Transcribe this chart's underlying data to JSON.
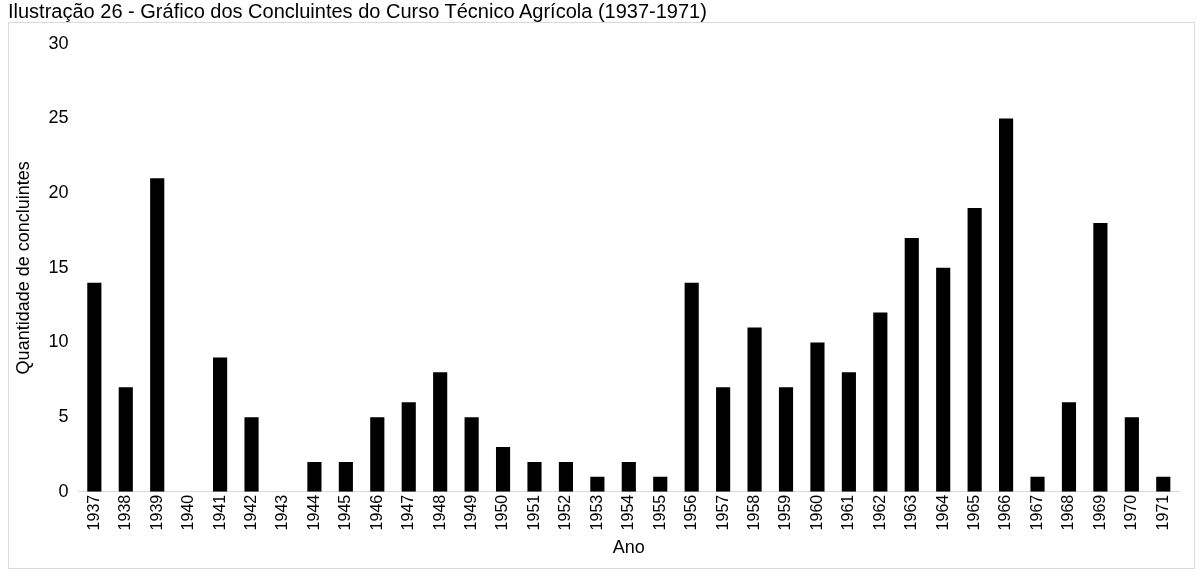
{
  "chart_data": {
    "type": "bar",
    "title": "Ilustração 26 - Gráfico dos Concluintes do Curso Técnico Agrícola (1937-1971)",
    "xlabel": "Ano",
    "ylabel": "Quantidade de concluintes",
    "categories": [
      "1937",
      "1938",
      "1939",
      "1940",
      "1941",
      "1942",
      "1943",
      "1944",
      "1945",
      "1946",
      "1947",
      "1948",
      "1949",
      "1950",
      "1951",
      "1952",
      "1953",
      "1954",
      "1955",
      "1956",
      "1957",
      "1958",
      "1959",
      "1960",
      "1961",
      "1962",
      "1963",
      "1964",
      "1965",
      "1966",
      "1967",
      "1968",
      "1969",
      "1970",
      "1971"
    ],
    "values": [
      14,
      7,
      21,
      0,
      9,
      5,
      0,
      2,
      2,
      5,
      6,
      8,
      5,
      3,
      2,
      2,
      1,
      2,
      1,
      14,
      7,
      11,
      7,
      10,
      8,
      12,
      17,
      15,
      19,
      25,
      1,
      6,
      18,
      5,
      1
    ],
    "color": "#000000",
    "ylim": [
      0,
      30
    ],
    "yticks": [
      0,
      5,
      10,
      15,
      20,
      25,
      30
    ],
    "grid": false,
    "legend": false
  }
}
